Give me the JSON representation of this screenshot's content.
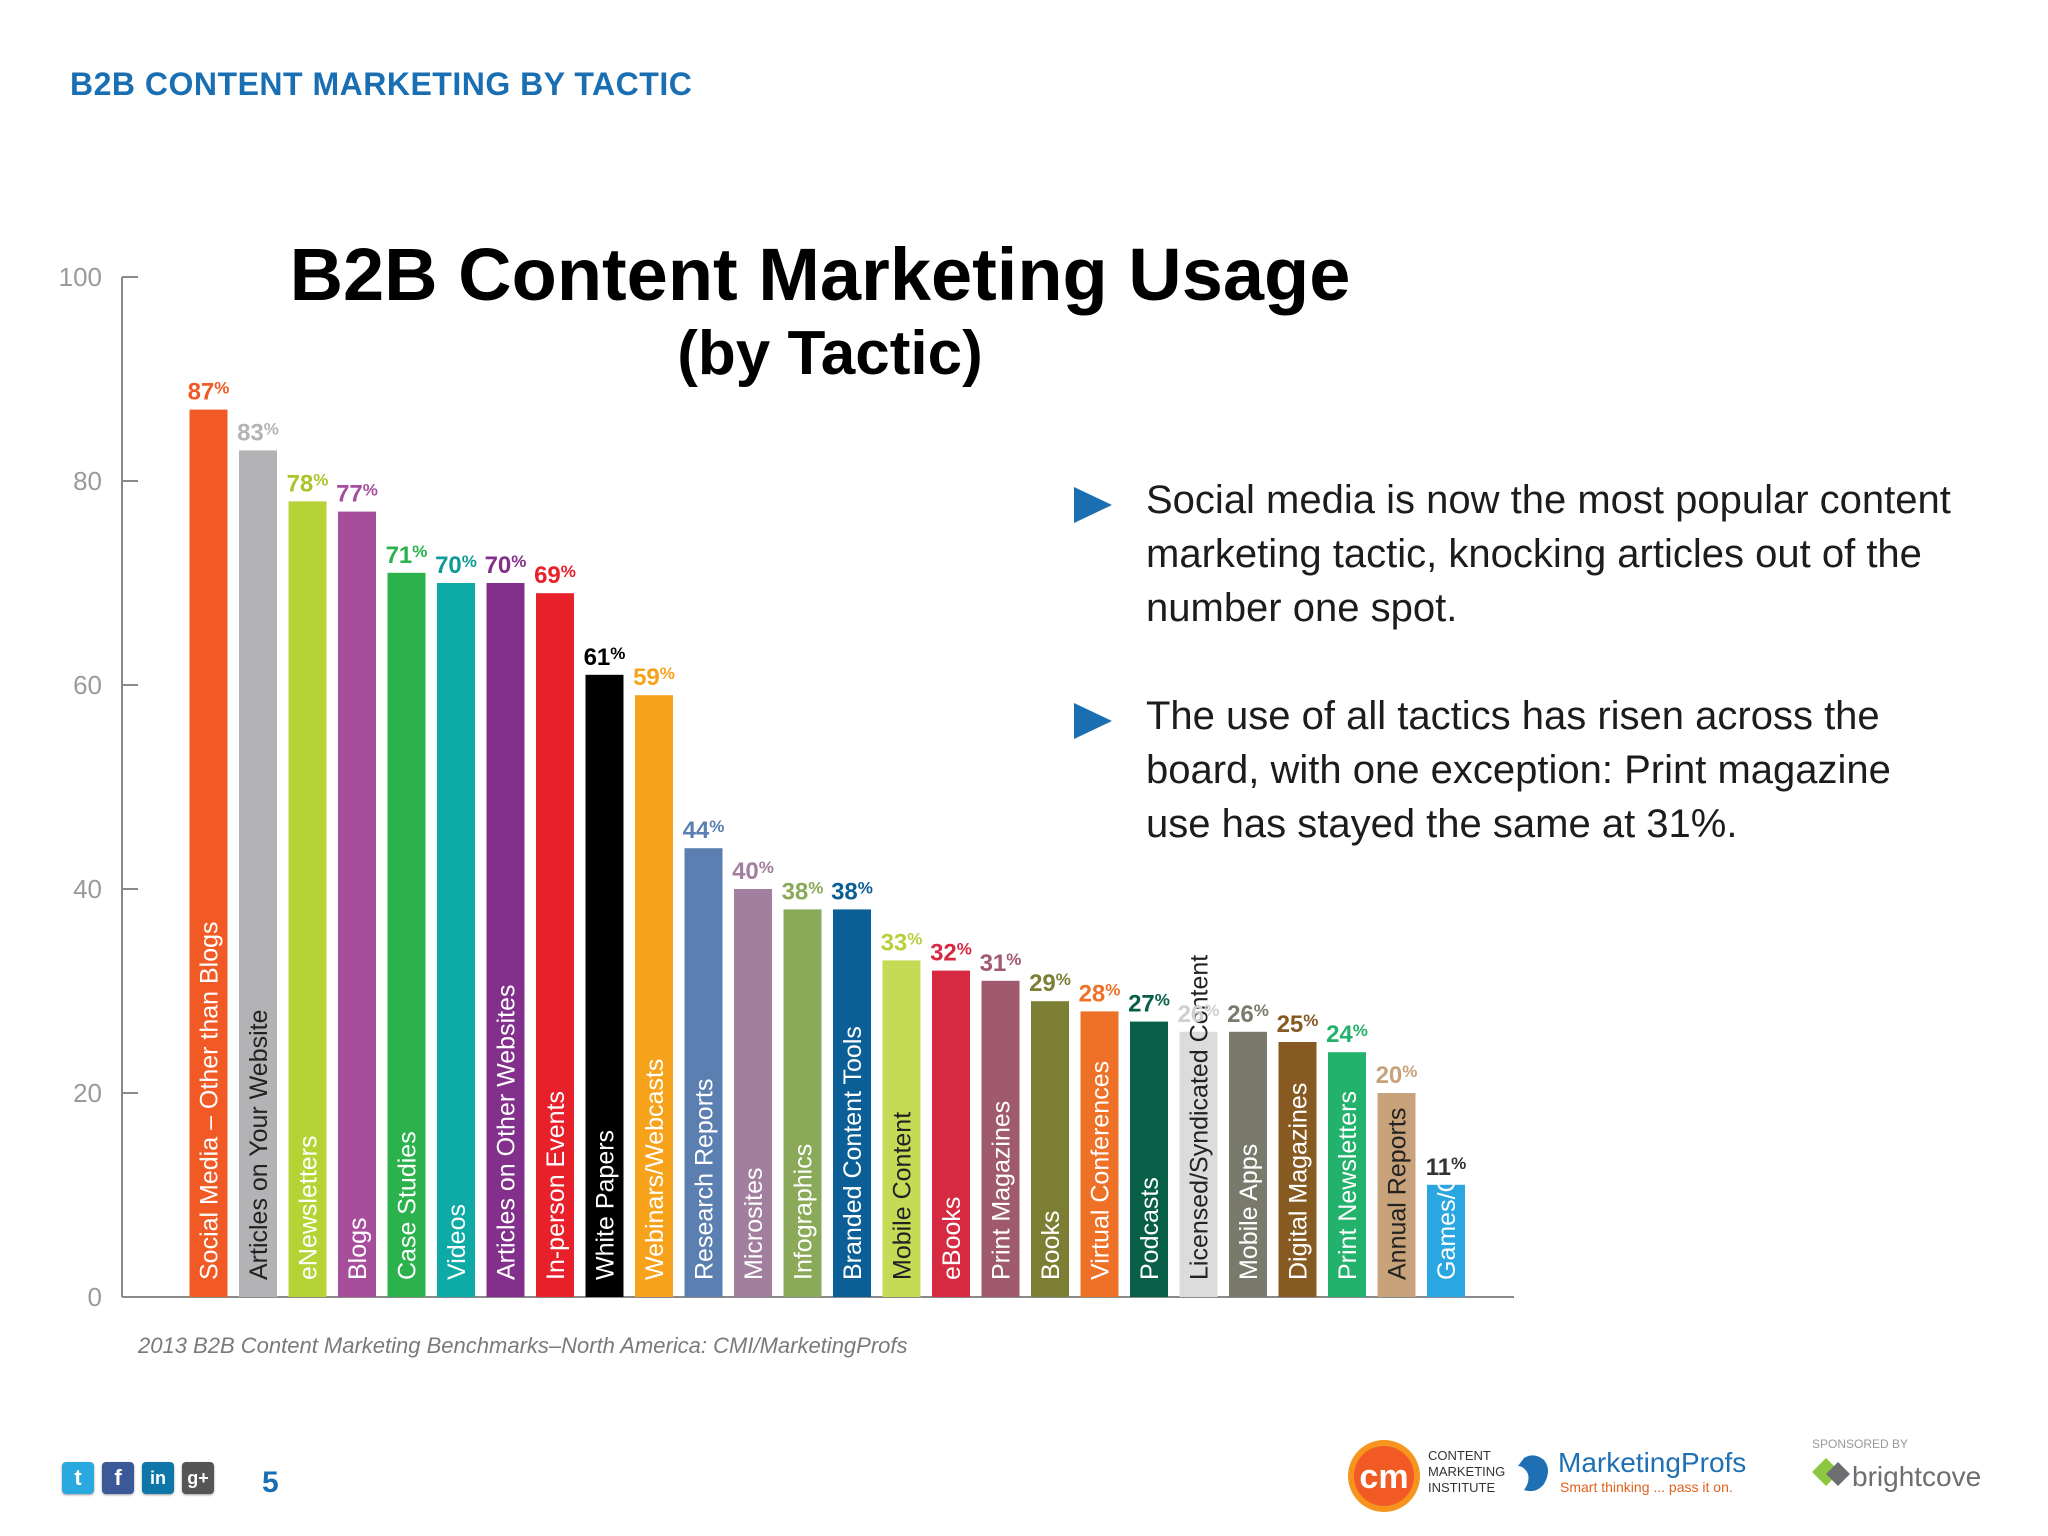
{
  "header": "B2B CONTENT MARKETING BY TACTIC",
  "page_number": "5",
  "source": "2013 B2B Content Marketing Benchmarks–North America: CMI/MarketingProfs",
  "bullets": [
    "Social media is now the most popular content marketing tactic, knocking articles out of the number one spot.",
    "The use of all tactics has risen across the board, with one exception: Print magazine use has stayed the same at 31%."
  ],
  "social_icons": [
    "twitter-icon",
    "facebook-icon",
    "linkedin-icon",
    "google-plus-icon"
  ],
  "logos": {
    "cmi": {
      "mark": "cm",
      "line1": "CONTENT",
      "line2": "MARKETING",
      "line3": "INSTITUTE"
    },
    "marketingprofs": {
      "name": "MarketingProfs",
      "tagline": "Smart thinking ... pass it on."
    },
    "sponsor": {
      "label": "SPONSORED BY",
      "name": "brightcove"
    }
  },
  "chart_data": {
    "type": "bar",
    "title": "B2B Content Marketing Usage",
    "subtitle": "(by Tactic)",
    "xlabel": "",
    "ylabel": "",
    "ylim": [
      0,
      100
    ],
    "yticks": [
      0,
      20,
      40,
      60,
      80,
      100
    ],
    "value_suffix": "%",
    "categories": [
      "Social Media – Other than Blogs",
      "Articles on Your Website",
      "eNewsletters",
      "Blogs",
      "Case Studies",
      "Videos",
      "Articles on Other Websites",
      "In-person Events",
      "White Papers",
      "Webinars/Webcasts",
      "Research Reports",
      "Microsites",
      "Infographics",
      "Branded Content Tools",
      "Mobile Content",
      "eBooks",
      "Print Magazines",
      "Books",
      "Virtual Conferences",
      "Podcasts",
      "Licensed/Syndicated Content",
      "Mobile Apps",
      "Digital Magazines",
      "Print Newsletters",
      "Annual Reports",
      "Games/Gamification"
    ],
    "values": [
      87,
      83,
      78,
      77,
      71,
      70,
      70,
      69,
      61,
      59,
      44,
      40,
      38,
      38,
      33,
      32,
      31,
      29,
      28,
      27,
      26,
      26,
      25,
      24,
      20,
      11
    ],
    "colors": [
      "#f15a24",
      "#b3b2b5",
      "#b5d334",
      "#a64e9c",
      "#2bb24c",
      "#0eaaa6",
      "#83308c",
      "#e8202a",
      "#000000",
      "#f7a21b",
      "#5a7fb0",
      "#a27e9f",
      "#8aaa5a",
      "#0c5f96",
      "#c6db55",
      "#d52a42",
      "#a05a6e",
      "#7c7f33",
      "#ee7127",
      "#075f48",
      "#dcdcdc",
      "#7a7a6c",
      "#875a22",
      "#23b26c",
      "#c8a27a",
      "#2aa7e0"
    ],
    "label_colors": [
      "#f15a24",
      "#b3b2b5",
      "#a9c628",
      "#a64e9c",
      "#2bb24c",
      "#0e9a96",
      "#83308c",
      "#e8202a",
      "#000000",
      "#f7a21b",
      "#5a7fb0",
      "#a27e9f",
      "#8aaa5a",
      "#0c5f96",
      "#b9cf3c",
      "#d52a42",
      "#a05a6e",
      "#7c7f33",
      "#ee7127",
      "#075f48",
      "#cfcfcf",
      "#7a7a6c",
      "#875a22",
      "#23b26c",
      "#c8a27a",
      "#333333"
    ],
    "grid": false,
    "legend": "none"
  }
}
